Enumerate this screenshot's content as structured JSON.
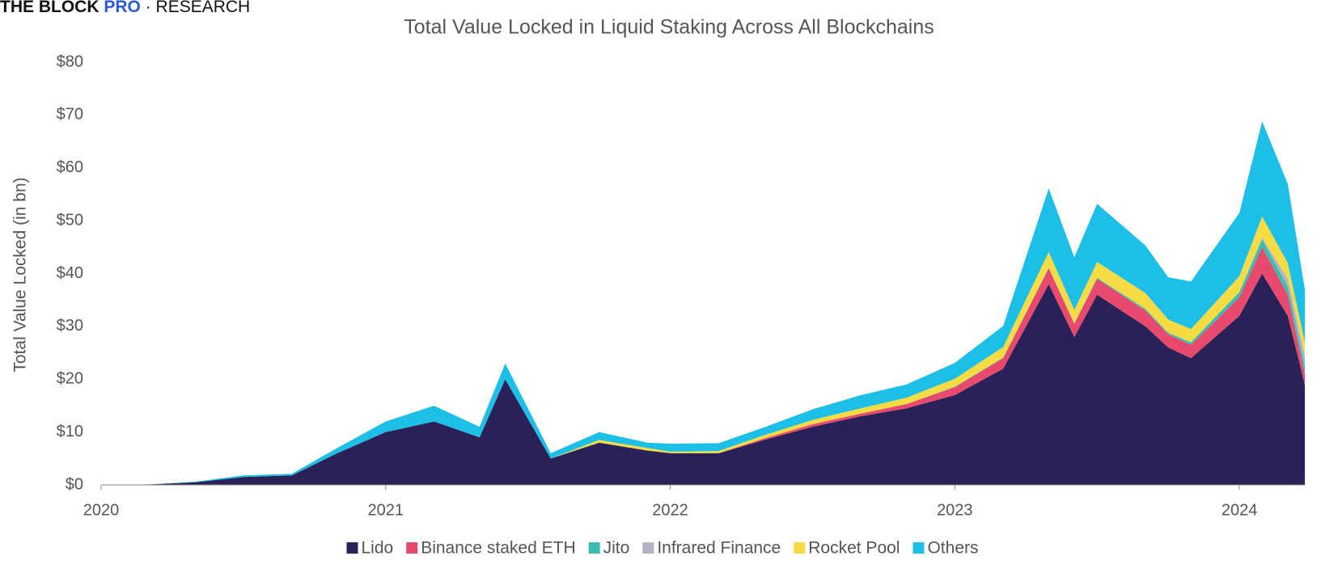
{
  "brand": {
    "name": "THE BLOCK",
    "tier": "PRO",
    "section": "· RESEARCH"
  },
  "chart_data": {
    "type": "stacked_area",
    "title": "Total Value Locked in Liquid Staking Across All Blockchains",
    "y_label": "Total Value Locked (in bn)",
    "x": [
      2020,
      2020.17,
      2020.33,
      2020.5,
      2020.67,
      2020.83,
      2021,
      2021.17,
      2021.33,
      2021.42,
      2021.58,
      2021.75,
      2021.92,
      2022,
      2022.17,
      2022.33,
      2022.5,
      2022.67,
      2022.83,
      2023,
      2023.17,
      2023.33,
      2023.42,
      2023.5,
      2023.67,
      2023.75,
      2023.83,
      2024,
      2024.08,
      2024.17,
      2024.23
    ],
    "series": [
      {
        "name": "Lido",
        "color": "#2a2158",
        "values": [
          0,
          0.1,
          0.5,
          1.5,
          1.8,
          6,
          10,
          12,
          9,
          20,
          5,
          8,
          6.5,
          6,
          6,
          8.5,
          11,
          13,
          14.5,
          17,
          22,
          38,
          28,
          36,
          30,
          26,
          24,
          32,
          40,
          32,
          19
        ]
      },
      {
        "name": "Binance staked ETH",
        "color": "#e84a6e",
        "values": [
          0,
          0,
          0,
          0,
          0,
          0,
          0,
          0,
          0,
          0,
          0,
          0,
          0,
          0,
          0,
          0.3,
          0.5,
          0.5,
          0.8,
          1.5,
          2,
          3,
          2.5,
          3,
          3,
          2.5,
          2.5,
          3.5,
          5,
          4,
          2
        ]
      },
      {
        "name": "Jito",
        "color": "#3bbcb0",
        "values": [
          0,
          0,
          0,
          0,
          0,
          0,
          0,
          0,
          0,
          0,
          0,
          0,
          0,
          0,
          0,
          0,
          0,
          0,
          0,
          0.1,
          0.1,
          0.1,
          0.1,
          0.2,
          0.3,
          0.3,
          0.5,
          1,
          1.5,
          1.5,
          1.5
        ]
      },
      {
        "name": "Infrared Finance",
        "color": "#b3b3c3",
        "values": [
          0,
          0,
          0,
          0,
          0,
          0,
          0,
          0,
          0,
          0,
          0,
          0,
          0,
          0,
          0,
          0,
          0,
          0,
          0,
          0,
          0,
          0,
          0,
          0,
          0,
          0,
          0,
          0,
          0.3,
          1.5,
          2
        ]
      },
      {
        "name": "Rocket Pool",
        "color": "#f5dc45",
        "values": [
          0,
          0,
          0,
          0,
          0,
          0,
          0,
          0,
          0,
          0,
          0,
          0.5,
          0.5,
          0.3,
          0.4,
          0.6,
          0.8,
          1,
          1.2,
          1.5,
          2,
          3,
          2.5,
          3,
          3,
          2.5,
          2.5,
          3,
          4,
          3,
          2.5
        ]
      },
      {
        "name": "Others",
        "color": "#1ebfe6",
        "values": [
          0,
          0,
          0.1,
          0.3,
          0.3,
          1,
          2,
          3,
          2,
          3,
          1,
          1.5,
          1,
          1.5,
          1.5,
          1.5,
          2,
          2.5,
          2.5,
          3,
          4,
          12,
          10,
          11,
          9,
          8,
          9,
          12,
          18,
          15,
          10
        ]
      }
    ],
    "xlim": [
      2020,
      2024.23
    ],
    "xticks": [
      2020,
      2021,
      2022,
      2023,
      2024
    ],
    "ylim": [
      0,
      80
    ],
    "yticks": [
      {
        "value": 0,
        "label": "$0"
      },
      {
        "value": 10,
        "label": "$10"
      },
      {
        "value": 20,
        "label": "$20"
      },
      {
        "value": 30,
        "label": "$30"
      },
      {
        "value": 40,
        "label": "$40"
      },
      {
        "value": 50,
        "label": "$50"
      },
      {
        "value": 60,
        "label": "$60"
      },
      {
        "value": 70,
        "label": "$70"
      },
      {
        "value": 80,
        "label": "$80"
      }
    ],
    "grid": false,
    "legend": "bottom"
  }
}
